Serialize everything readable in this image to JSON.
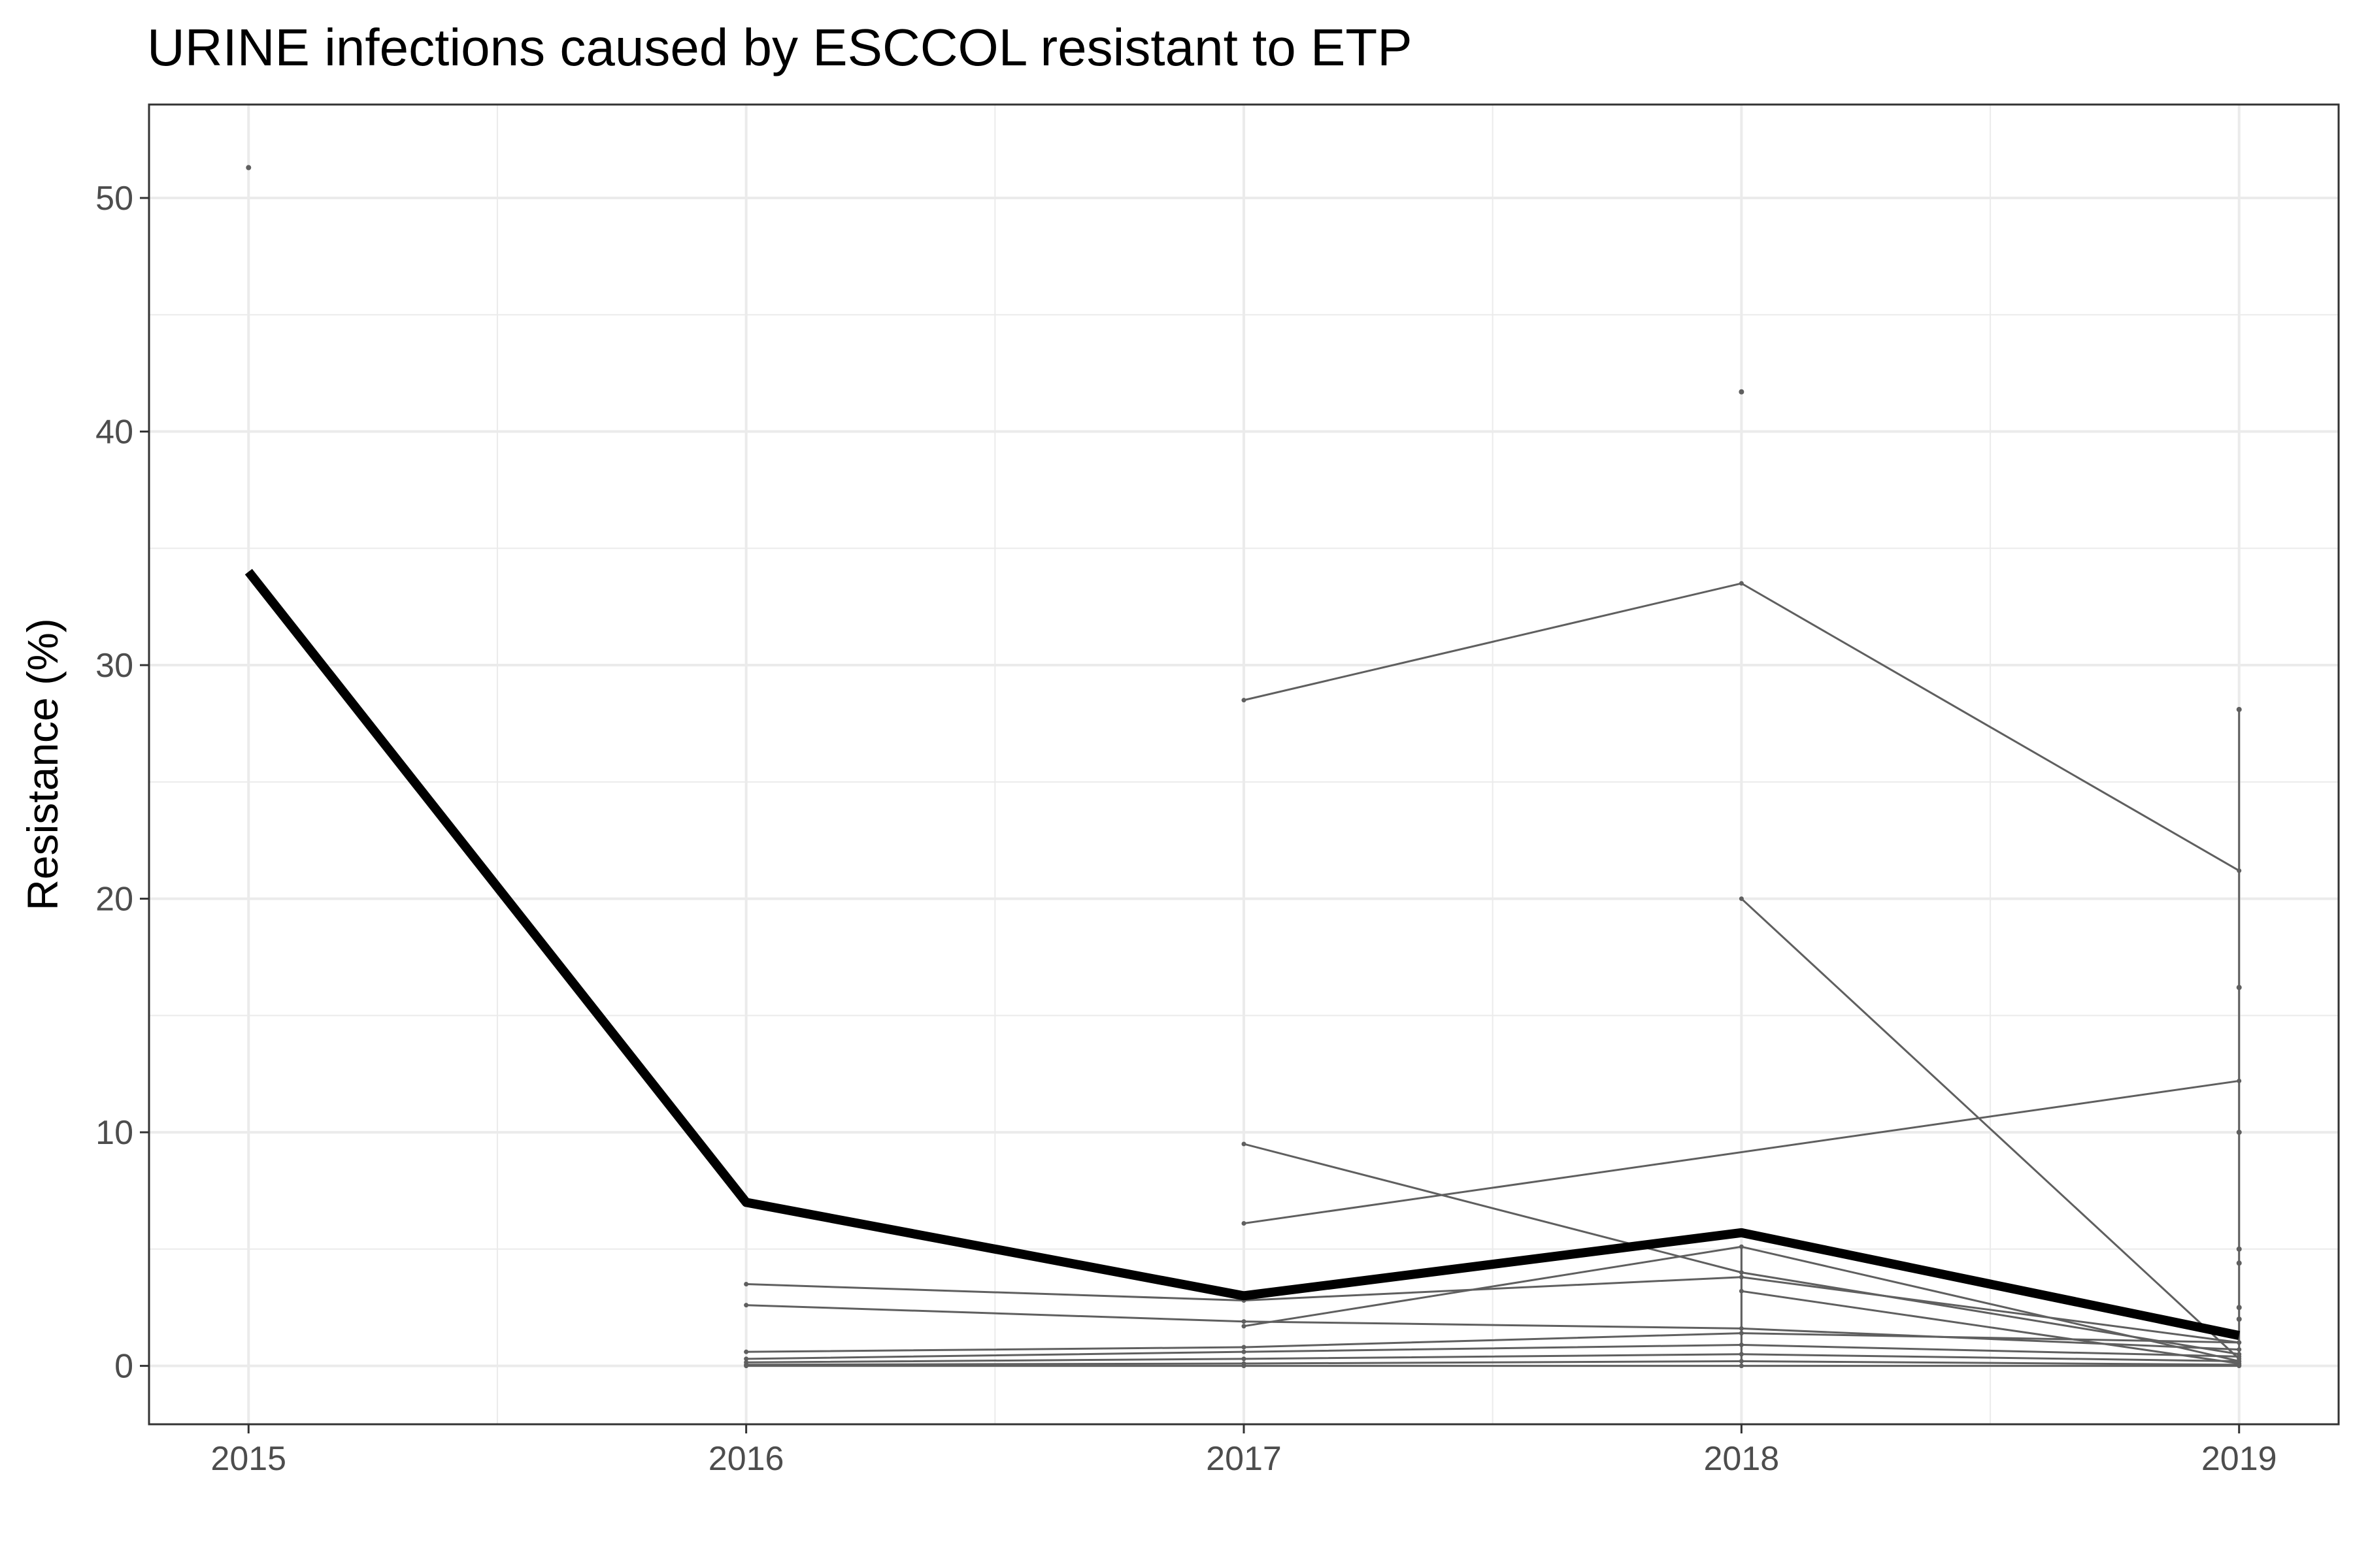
{
  "chart_data": {
    "type": "line",
    "title": "URINE infections caused by ESCCOL resistant to ETP",
    "xlabel": "",
    "ylabel": "Resistance (%)",
    "x": [
      2015,
      2016,
      2017,
      2018,
      2019
    ],
    "x_tick_labels": [
      "2015",
      "2016",
      "2017",
      "2018",
      "2019"
    ],
    "y_ticks": [
      0,
      10,
      20,
      30,
      40,
      50
    ],
    "y_tick_labels": [
      "0",
      "10",
      "20",
      "30",
      "40",
      "50"
    ],
    "xlim": [
      2014.8,
      2019.2
    ],
    "ylim": [
      -2.5,
      54
    ],
    "grid": true,
    "legend": "none",
    "colors": {
      "overall": "#000000",
      "individual": "#5f5f5f",
      "grid": "#ebebeb",
      "panel_border": "#333333",
      "tick_text": "#4d4d4d"
    },
    "overall_series": {
      "x": [
        2015,
        2016,
        2017,
        2018,
        2019
      ],
      "values": [
        34.0,
        7.0,
        3.0,
        5.7,
        1.3
      ]
    },
    "individual_series": [
      {
        "x": [
          2017,
          2018,
          2019
        ],
        "values": [
          28.5,
          33.5,
          21.2
        ]
      },
      {
        "x": [
          2018,
          2019
        ],
        "values": [
          20.0,
          0.3
        ]
      },
      {
        "x": [
          2017,
          2019
        ],
        "values": [
          6.1,
          12.2
        ]
      },
      {
        "x": [
          2017,
          2018,
          2019
        ],
        "values": [
          9.5,
          4.0,
          0.5
        ]
      },
      {
        "x": [
          2016,
          2017,
          2018,
          2019
        ],
        "values": [
          3.5,
          2.8,
          3.8,
          1.0
        ]
      },
      {
        "x": [
          2016,
          2017,
          2018,
          2019
        ],
        "values": [
          2.6,
          1.9,
          1.6,
          0.7
        ]
      },
      {
        "x": [
          2017,
          2018,
          2019
        ],
        "values": [
          1.7,
          5.1,
          0.2
        ]
      },
      {
        "x": [
          2018,
          2019
        ],
        "values": [
          3.2,
          0.1
        ]
      },
      {
        "x": [
          2016,
          2017,
          2018,
          2019
        ],
        "values": [
          0.6,
          0.8,
          1.4,
          1.0
        ]
      },
      {
        "x": [
          2016,
          2017,
          2018,
          2019
        ],
        "values": [
          0.3,
          0.6,
          0.9,
          0.4
        ]
      },
      {
        "x": [
          2016,
          2017,
          2018,
          2019
        ],
        "values": [
          0.15,
          0.3,
          0.5,
          0.2
        ]
      },
      {
        "x": [
          2016,
          2017,
          2018,
          2019
        ],
        "values": [
          0.05,
          0.1,
          0.2,
          0.05
        ]
      },
      {
        "x": [
          2016,
          2017,
          2018,
          2019
        ],
        "values": [
          0.0,
          0.0,
          0.0,
          0.0
        ]
      }
    ],
    "isolated_points": [
      {
        "x": 2015,
        "y": 51.3
      },
      {
        "x": 2018,
        "y": 41.7
      },
      {
        "x": 2019,
        "y": 28.1
      },
      {
        "x": 2019,
        "y": 16.2
      },
      {
        "x": 2019,
        "y": 10.0
      },
      {
        "x": 2019,
        "y": 5.0
      },
      {
        "x": 2019,
        "y": 4.4
      },
      {
        "x": 2019,
        "y": 2.5
      },
      {
        "x": 2019,
        "y": 2.0
      }
    ],
    "vertical_segments": [
      {
        "x": 2019,
        "y_from": 0,
        "y_to": 28.1
      },
      {
        "x": 2018,
        "y_from": 0,
        "y_to": 5.1
      }
    ]
  }
}
